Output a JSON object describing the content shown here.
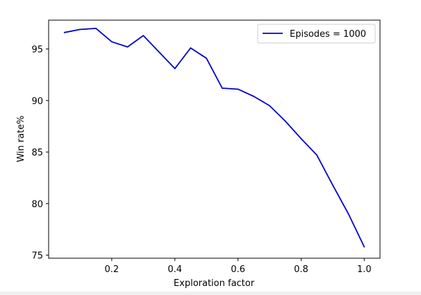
{
  "chart_data": {
    "type": "line",
    "title": "",
    "xlabel": "Exploration factor",
    "ylabel": "Win rate%",
    "xlim": [
      0.0,
      1.05
    ],
    "ylim": [
      74.7,
      97.8
    ],
    "xticks": [
      0.2,
      0.4,
      0.6,
      0.8,
      1.0
    ],
    "xtick_labels": [
      "0.2",
      "0.4",
      "0.6",
      "0.8",
      "1.0"
    ],
    "yticks": [
      75,
      80,
      85,
      90,
      95
    ],
    "ytick_labels": [
      "75",
      "80",
      "85",
      "90",
      "95"
    ],
    "grid": false,
    "legend_position": "top-right",
    "series": [
      {
        "name": "Episodes = 1000",
        "color": "#0000cc",
        "x": [
          0.05,
          0.1,
          0.15,
          0.2,
          0.25,
          0.3,
          0.35,
          0.4,
          0.45,
          0.5,
          0.55,
          0.6,
          0.65,
          0.7,
          0.75,
          0.8,
          0.85,
          0.9,
          0.95,
          1.0
        ],
        "y": [
          96.6,
          96.9,
          97.0,
          95.7,
          95.2,
          96.3,
          94.7,
          93.1,
          95.1,
          94.1,
          91.2,
          91.1,
          90.4,
          89.5,
          88.0,
          86.3,
          84.7,
          81.8,
          79.0,
          75.8
        ]
      }
    ]
  }
}
